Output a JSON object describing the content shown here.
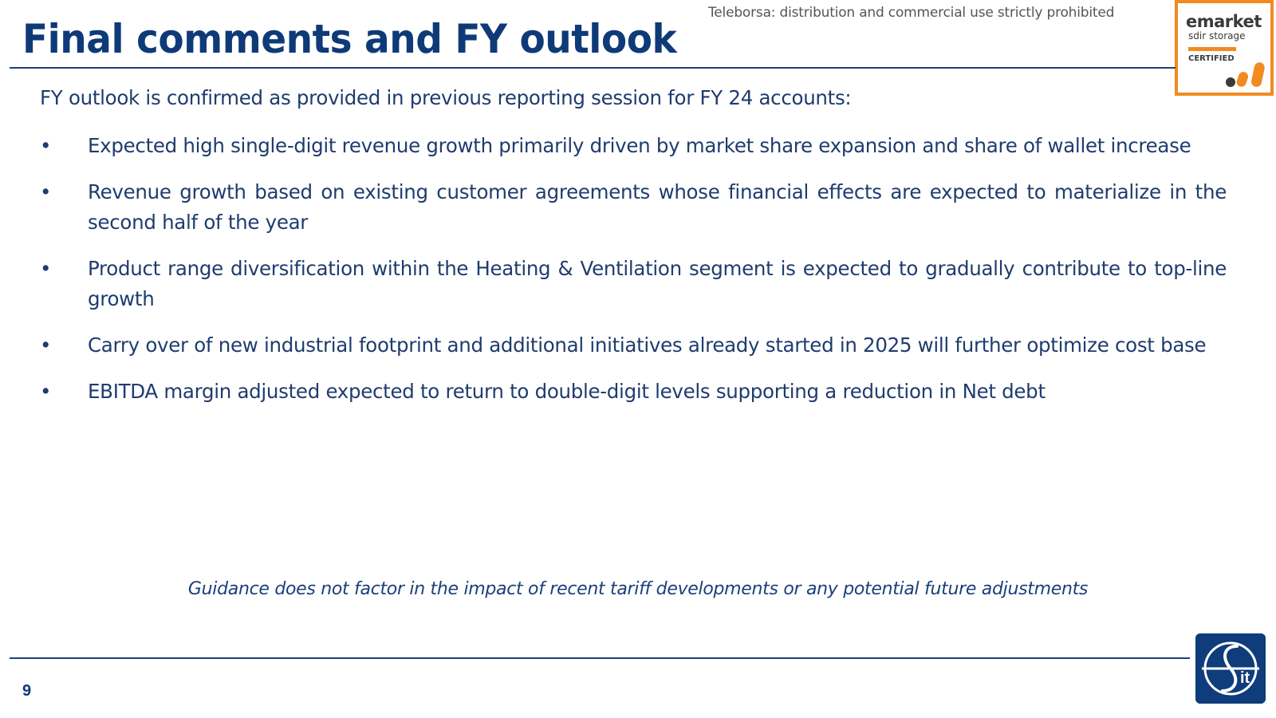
{
  "watermark": "Teleborsa: distribution and commercial use strictly prohibited",
  "badge": {
    "brand": "emarket",
    "sub": "sdir storage",
    "certified": "CERTIFIED",
    "accent_color": "#f28a1f"
  },
  "title": "Final comments and FY outlook",
  "intro": "FY outlook is confirmed as provided in previous reporting session for FY 24 accounts:",
  "bullet_symbol": "•",
  "bullets": [
    "Expected high single-digit revenue growth primarily driven by market share expansion and share of wallet increase",
    "Revenue growth based on existing customer agreements whose financial effects are expected to materialize  in the second half of the year",
    "Product range diversification within the Heating & Ventilation segment is expected to gradually contribute to top-line growth",
    "Carry over of new industrial footprint and additional initiatives already started in 2025 will further optimize cost base",
    "EBITDA margin adjusted expected to return to double-digit levels supporting a reduction in Net debt"
  ],
  "guidance": "Guidance does not factor in the impact of recent tariff developments or any potential future adjustments",
  "page_number": "9",
  "colors": {
    "title": "#0e3a78",
    "body_text": "#1f3c6e",
    "rule": "#1f3f7a",
    "logo_background": "#0f3c7a"
  },
  "icons": {
    "badge_logo": "emarket-dots-icon",
    "company_logo": "sit-logo-icon"
  }
}
